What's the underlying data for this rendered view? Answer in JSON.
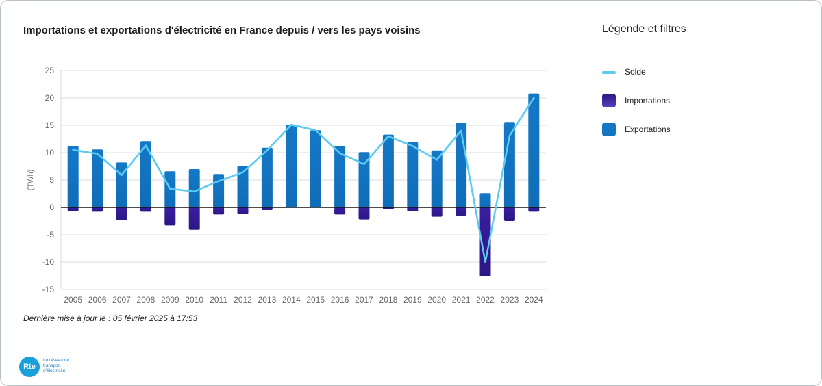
{
  "chart_data": {
    "type": "bar",
    "title": "Importations et exportations d'électricité en France depuis / vers les pays voisins",
    "ylabel": "(TWh)",
    "ylim": [
      -15,
      25
    ],
    "yticks": [
      25,
      20,
      15,
      10,
      5,
      0,
      -5,
      -10,
      -15
    ],
    "grid": true,
    "legend_placement": "right-panel",
    "categories": [
      "2005",
      "2006",
      "2007",
      "2008",
      "2009",
      "2010",
      "2011",
      "2012",
      "2013",
      "2014",
      "2015",
      "2016",
      "2017",
      "2018",
      "2019",
      "2020",
      "2021",
      "2022",
      "2023",
      "2024"
    ],
    "series": [
      {
        "name": "Exportations",
        "kind": "bar",
        "color": "#1477c4",
        "values": [
          11.2,
          10.6,
          8.2,
          12.1,
          6.6,
          7.0,
          6.1,
          7.6,
          10.9,
          15.1,
          14.1,
          11.2,
          10.1,
          13.3,
          11.9,
          10.4,
          15.5,
          2.6,
          15.6,
          20.8
        ]
      },
      {
        "name": "Importations",
        "kind": "bar",
        "color": "#3a1ea0",
        "values": [
          -0.7,
          -0.8,
          -2.3,
          -0.8,
          -3.3,
          -4.1,
          -1.3,
          -1.2,
          -0.5,
          0,
          0,
          -1.3,
          -2.2,
          -0.3,
          -0.7,
          -1.7,
          -1.5,
          -12.6,
          -2.5,
          -0.8
        ]
      },
      {
        "name": "Solde",
        "kind": "line",
        "color": "#5ccbf0",
        "values": [
          10.5,
          9.8,
          5.9,
          11.3,
          3.4,
          2.9,
          4.8,
          6.4,
          10.4,
          15.1,
          14.1,
          9.9,
          7.9,
          13.0,
          11.2,
          8.7,
          14.0,
          -10.0,
          13.1,
          20.0
        ]
      }
    ]
  },
  "footer": {
    "updated": "Dernière mise à jour le : 05 février 2025 à 17:53",
    "logo_mark": "Rte",
    "logo_text": "Le réseau de transport d'électricité"
  },
  "sidebar": {
    "title": "Légende et filtres",
    "legend": [
      {
        "label": "Solde",
        "kind": "line",
        "color": "#5ccbf0"
      },
      {
        "label": "Importations",
        "kind": "box",
        "color": "#3a1ea0"
      },
      {
        "label": "Exportations",
        "kind": "box",
        "color": "#1477c4"
      }
    ]
  }
}
